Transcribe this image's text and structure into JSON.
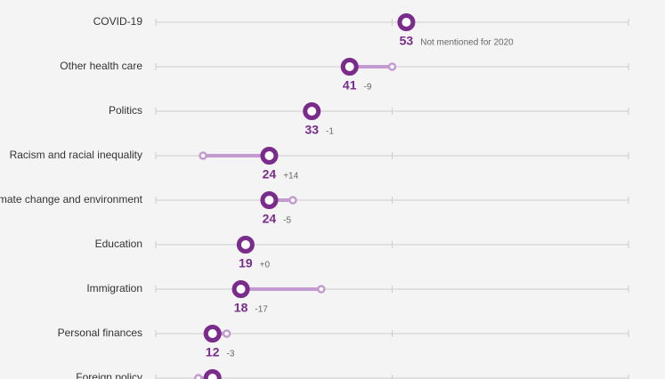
{
  "chart_data": {
    "type": "dumbbell",
    "categories": [
      "COVID-19",
      "Other health care",
      "Politics",
      "Racism and racial inequality",
      "Climate change and environment",
      "Education",
      "Immigration",
      "Personal finances",
      "Foreign policy"
    ],
    "series": [
      {
        "color": "#7a2b8c",
        "values": [
          53,
          41,
          33,
          24,
          24,
          19,
          18,
          12,
          12
        ]
      },
      {
        "color": "#c49bd1",
        "values": [
          null,
          50,
          34,
          10,
          29,
          19,
          35,
          15,
          9
        ]
      }
    ],
    "value_labels": [
      "53",
      "41",
      "33",
      "24",
      "24",
      "19",
      "18",
      "12",
      null
    ],
    "change_labels": [
      "Not mentioned for 2020",
      "-9",
      "-1",
      "+14",
      "-5",
      "+0",
      "-17",
      "-3",
      null
    ],
    "xlim": [
      0,
      100
    ],
    "xticks": [
      0,
      50,
      100
    ],
    "grid": true
  }
}
